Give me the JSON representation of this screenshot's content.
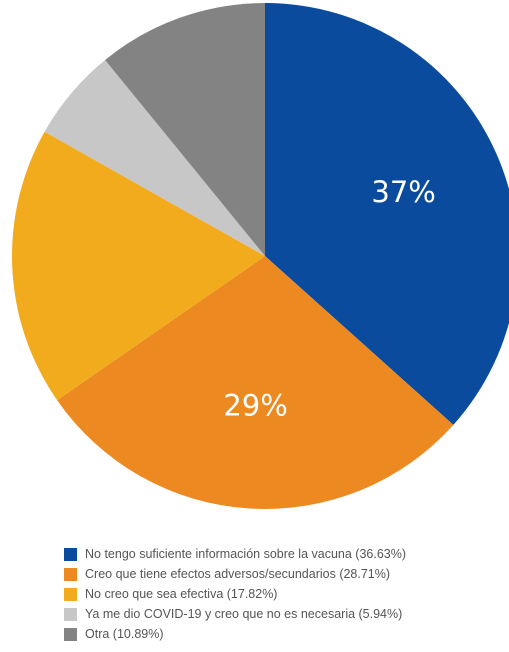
{
  "chart_data": {
    "type": "pie",
    "start_angle_deg": 0,
    "direction": "clockwise",
    "slices": [
      {
        "label": "No tengo suficiente información sobre la vacuna (36.63%)",
        "value": 36.63,
        "color": "#0a4b9e",
        "data_label": "37%"
      },
      {
        "label": "Creo que tiene efectos adversos/secundarios (28.71%)",
        "value": 28.71,
        "color": "#ec8a21",
        "data_label": "29%"
      },
      {
        "label": "No creo que sea efectiva (17.82%)",
        "value": 17.82,
        "color": "#f1ab1d",
        "data_label": ""
      },
      {
        "label": "Ya me dio COVID-19 y creo que no es necesaria (5.94%)",
        "value": 5.94,
        "color": "#c7c7c7",
        "data_label": ""
      },
      {
        "label": "Otra (10.89%)",
        "value": 10.89,
        "color": "#838383",
        "data_label": ""
      }
    ],
    "legend_position": "bottom-left"
  }
}
